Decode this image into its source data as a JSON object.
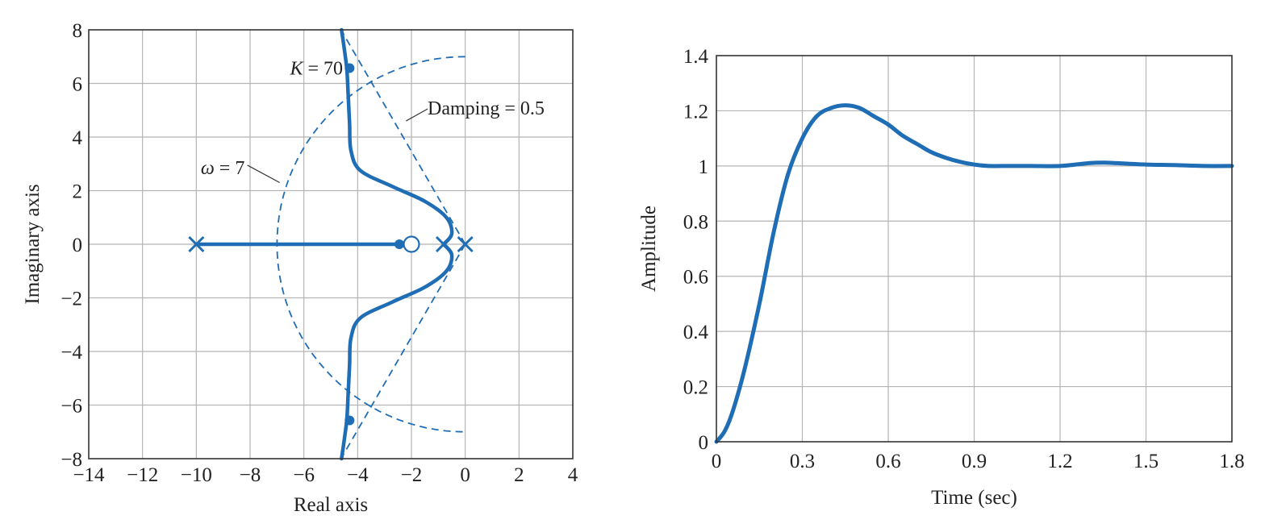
{
  "chart_data": [
    {
      "type": "line",
      "subtype": "root-locus",
      "xlabel": "Real axis",
      "ylabel": "Imaginary axis",
      "xlim": [
        -14,
        4
      ],
      "ylim": [
        -8,
        8
      ],
      "xticks": [
        -14,
        -12,
        -10,
        -8,
        -6,
        -4,
        -2,
        0,
        2,
        4
      ],
      "yticks": [
        -8,
        -6,
        -4,
        -2,
        0,
        2,
        4,
        6,
        8
      ],
      "xtick_labels": [
        "−14",
        "−12",
        "−10",
        "−8",
        "−6",
        "−4",
        "−2",
        "0",
        "2",
        "4"
      ],
      "ytick_labels": [
        "−8",
        "−6",
        "−4",
        "−2",
        "0",
        "2",
        "4",
        "6",
        "8"
      ],
      "grid": true,
      "line_color": "#1f6db5",
      "poles": [
        [
          -10,
          0
        ],
        [
          -0.8,
          0
        ],
        [
          0,
          0
        ]
      ],
      "zeros": [
        [
          -2,
          0
        ]
      ],
      "locus_branches": [
        [
          [
            -10,
            0
          ],
          [
            -2.45,
            0
          ]
        ],
        [
          [
            -0.8,
            0
          ],
          [
            -0.5,
            0.4
          ],
          [
            -0.7,
            1.0
          ],
          [
            -1.5,
            1.6
          ],
          [
            -2.7,
            2.15
          ],
          [
            -3.9,
            2.75
          ],
          [
            -4.25,
            3.5
          ],
          [
            -4.3,
            4.5
          ],
          [
            -4.35,
            5.5
          ],
          [
            -4.4,
            6.5
          ],
          [
            -4.5,
            7.3
          ],
          [
            -4.6,
            8
          ]
        ],
        [
          [
            -0.8,
            0
          ],
          [
            -0.5,
            -0.4
          ],
          [
            -0.7,
            -1.0
          ],
          [
            -1.5,
            -1.6
          ],
          [
            -2.7,
            -2.15
          ],
          [
            -3.9,
            -2.75
          ],
          [
            -4.25,
            -3.5
          ],
          [
            -4.3,
            -4.5
          ],
          [
            -4.35,
            -5.5
          ],
          [
            -4.4,
            -6.5
          ],
          [
            -4.5,
            -7.3
          ],
          [
            -4.6,
            -8
          ]
        ]
      ],
      "closed_loop_poles_K70": [
        [
          -4.3,
          6.57
        ],
        [
          -4.3,
          -6.57
        ],
        [
          -2.45,
          0
        ]
      ],
      "omega_circle_radius": 7,
      "damping_ratio": 0.5,
      "annotations": {
        "k_label": "K = 70",
        "damping_label": "Damping = 0.5",
        "omega_label": "ω = 7"
      }
    },
    {
      "type": "line",
      "subtype": "step-response",
      "xlabel": "Time (sec)",
      "ylabel": "Amplitude",
      "xlim": [
        0,
        1.8
      ],
      "ylim": [
        0,
        1.4
      ],
      "xticks": [
        0,
        0.3,
        0.6,
        0.9,
        1.2,
        1.5,
        1.8
      ],
      "yticks": [
        0,
        0.2,
        0.4,
        0.6,
        0.8,
        1,
        1.2,
        1.4
      ],
      "xtick_labels": [
        "0",
        "0.3",
        "0.6",
        "0.9",
        "1.2",
        "1.5",
        "1.8"
      ],
      "ytick_labels": [
        "0",
        "0.2",
        "0.4",
        "0.6",
        "0.8",
        "1",
        "1.2",
        "1.4"
      ],
      "grid": true,
      "line_color": "#1f6db5",
      "x": [
        0,
        0.03,
        0.06,
        0.1,
        0.15,
        0.2,
        0.25,
        0.3,
        0.35,
        0.4,
        0.45,
        0.5,
        0.55,
        0.6,
        0.65,
        0.7,
        0.75,
        0.8,
        0.85,
        0.9,
        0.95,
        1.0,
        1.1,
        1.2,
        1.3,
        1.35,
        1.4,
        1.5,
        1.6,
        1.7,
        1.8
      ],
      "y": [
        0,
        0.04,
        0.12,
        0.27,
        0.5,
        0.76,
        0.97,
        1.1,
        1.18,
        1.21,
        1.22,
        1.21,
        1.18,
        1.15,
        1.11,
        1.08,
        1.05,
        1.03,
        1.015,
        1.005,
        1.0,
        1.0,
        1.0,
        1.0,
        1.01,
        1.012,
        1.01,
        1.005,
        1.003,
        1.0,
        1.0
      ]
    }
  ]
}
